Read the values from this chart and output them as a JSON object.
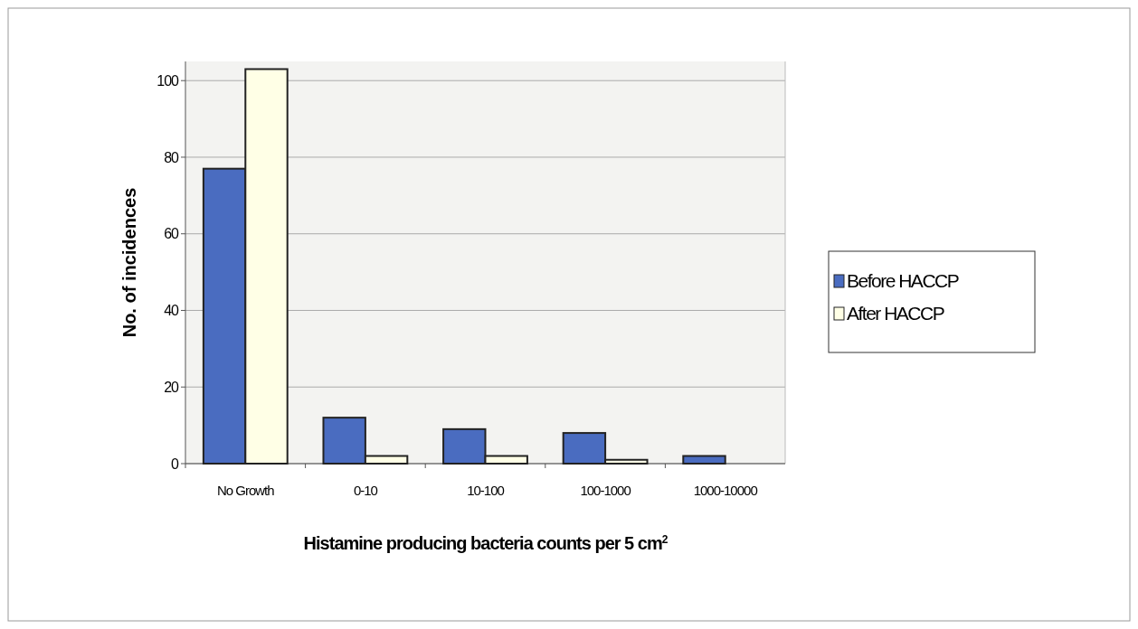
{
  "chart_data": {
    "type": "bar",
    "xlabel": "Histamine producing bacteria counts per 5 cm$^{2}$",
    "ylabel": "No. of incidences",
    "categories": [
      "No Growth",
      "0-10",
      "10-100",
      "100-1000",
      "1000-10000"
    ],
    "series": [
      {
        "name": "Before HACCP",
        "color": "#4a6cc0",
        "values": [
          77,
          12,
          9,
          8,
          2
        ]
      },
      {
        "name": "After HACCP",
        "color": "#ffffe6",
        "values": [
          103,
          2,
          2,
          1,
          0
        ]
      }
    ],
    "ylim": [
      0,
      105
    ],
    "yticks": [
      0,
      20,
      40,
      60,
      80,
      100
    ],
    "grid": "y",
    "legend": "right"
  }
}
